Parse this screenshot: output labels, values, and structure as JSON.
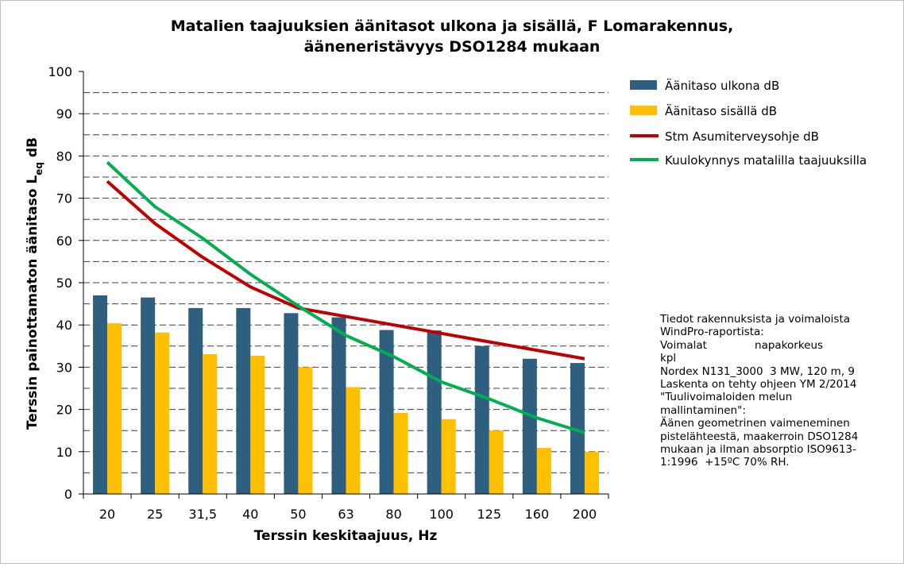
{
  "chart_data": {
    "type": "bar",
    "title_lines": [
      "Matalien taajuuksien äänitasot ulkona ja sisällä, F Lomarakennus,",
      "ääneneristävyys DSO1284 mukaan"
    ],
    "xlabel": "Terssin keskitaajuus, Hz",
    "ylabel_main": "Terssin painottamaton äänitaso L",
    "ylabel_sub": "eq",
    "ylabel_end": " dB",
    "ylim": [
      0,
      100
    ],
    "yticks": [
      "0",
      "10",
      "20",
      "30",
      "40",
      "50",
      "60",
      "70",
      "80",
      "90",
      "100"
    ],
    "categories": [
      "20",
      "25",
      "31,5",
      "40",
      "50",
      "63",
      "80",
      "100",
      "125",
      "160",
      "200"
    ],
    "grid": "dashed horizontal",
    "legend_position": "right",
    "series": [
      {
        "name": "Äänitaso ulkona dB",
        "kind": "bar",
        "color": "#2E5F7F",
        "values": [
          47,
          46.5,
          44,
          44,
          42.8,
          41.8,
          38.8,
          38.7,
          35,
          32,
          31
        ]
      },
      {
        "name": "Äänitaso sisällä dB",
        "kind": "bar",
        "color": "#FFC000",
        "values": [
          40.4,
          38.2,
          33.1,
          32.7,
          30,
          25.3,
          19.2,
          17.7,
          15,
          10.9,
          10
        ]
      },
      {
        "name": "Stm Asumiterveysohje dB",
        "kind": "line",
        "color": "#C00000",
        "values": [
          74,
          64,
          56,
          49,
          44,
          42,
          40,
          38,
          36,
          34,
          32
        ]
      },
      {
        "name": "Kuulokynnys matalilla taajuuksilla",
        "kind": "line",
        "color": "#00B050",
        "values": [
          78.5,
          68,
          60.5,
          52,
          44.5,
          37.5,
          32.5,
          26.5,
          22.5,
          18,
          14.5
        ]
      }
    ]
  },
  "note_lines": [
    "Tiedot rakennuksista ja voimaloista",
    "WindPro-raportista:",
    "Voimalat              napakorkeus",
    "kpl",
    "Nordex N131_3000  3 MW, 120 m, 9",
    "Laskenta on tehty ohjeen YM 2/2014",
    "\"Tuulivoimaloiden melun",
    "mallintaminen\":",
    "Äänen geometrinen vaimeneminen",
    "pistelähteestä, maakerroin DSO1284",
    "mukaan ja ilman absorptio ISO9613-",
    "1:1996  +15ºC 70% RH."
  ]
}
